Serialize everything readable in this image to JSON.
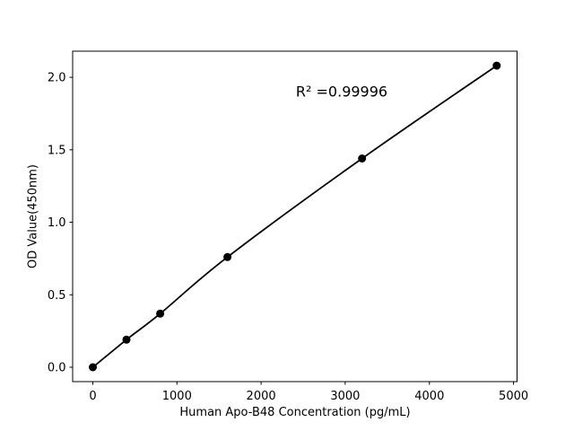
{
  "figure": {
    "background_color": "#ffffff",
    "foreground_color": "#000000"
  },
  "chart_data": {
    "type": "line",
    "title": "",
    "xlabel": "Human Apo-B48 Concentration (pg/mL)",
    "ylabel": "OD Value(450nm)",
    "x": [
      0,
      400,
      800,
      1600,
      3200,
      4800
    ],
    "y": [
      0.0,
      0.19,
      0.37,
      0.76,
      1.44,
      2.08
    ],
    "x_ticks": [
      0,
      1000,
      2000,
      3000,
      4000,
      5000
    ],
    "x_tick_labels": [
      "0",
      "1000",
      "2000",
      "3000",
      "4000",
      "5000"
    ],
    "y_ticks": [
      0.0,
      0.5,
      1.0,
      1.5,
      2.0
    ],
    "y_tick_labels": [
      "0.0",
      "0.5",
      "1.0",
      "1.5",
      "2.0"
    ],
    "xlim": [
      -240,
      5042
    ],
    "ylim": [
      -0.099,
      2.18
    ],
    "grid": false,
    "legend": null,
    "line_color": "#000000",
    "marker": "circle",
    "marker_color": "#000000",
    "annotation": {
      "text": "R² =0.99996",
      "x": 2954,
      "y": 1.9
    }
  }
}
